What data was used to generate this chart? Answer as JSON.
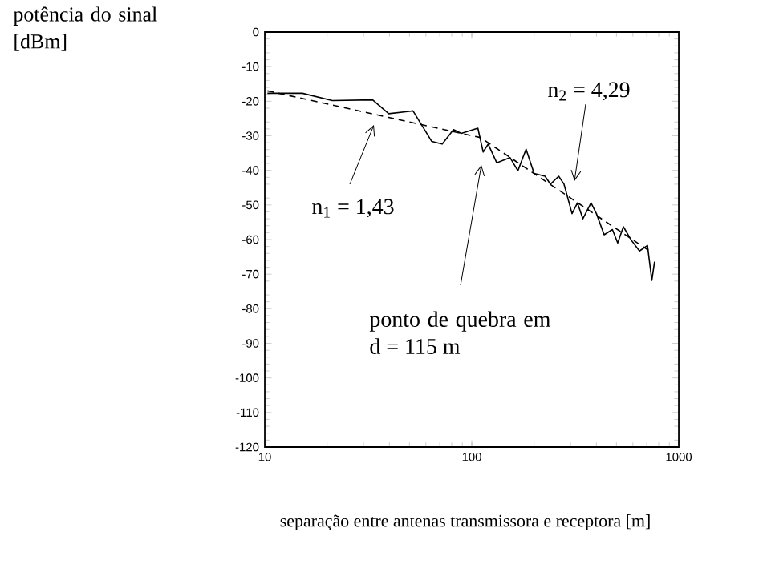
{
  "chart_data": {
    "type": "line",
    "xlabel": "separação entre antenas transmissora e receptora [m]",
    "ylabel": "potência do sinal [dBm]",
    "log": "x",
    "xlim": [
      10,
      1000
    ],
    "xticks": [
      10,
      100,
      1000
    ],
    "ylim": [
      -120,
      0
    ],
    "yticks": [
      -120,
      -110,
      -100,
      -90,
      -80,
      -70,
      -60,
      -50,
      -40,
      -30,
      -20,
      -10,
      0
    ],
    "marker": "none",
    "series": [
      {
        "color": "#000000",
        "line_style": "solid",
        "x": [
          10.3,
          15.2,
          21.2,
          33.2,
          39.7,
          52,
          64,
          72,
          81.6,
          89,
          107,
          113.5,
          120,
          132,
          153,
          167,
          183,
          200,
          226,
          240,
          263,
          279,
          305,
          324,
          344,
          377,
          400,
          436,
          478,
          507,
          540,
          590,
          646,
          706,
          741,
          764
        ],
        "values": [
          -17.7,
          -17.7,
          -19.8,
          -19.6,
          -23.6,
          -22.8,
          -31.6,
          -32.4,
          -28.2,
          -29.3,
          -27.8,
          -34.7,
          -32.4,
          -37.8,
          -36.3,
          -40.1,
          -33.9,
          -40.9,
          -41.7,
          -44,
          -41.7,
          -44,
          -52.5,
          -49.4,
          -54,
          -49.4,
          -52.5,
          -58.6,
          -57.1,
          -61,
          -56.3,
          -60.2,
          -63.3,
          -61.7,
          -71.8,
          -66.4
        ]
      },
      {
        "color": "#000000",
        "line_style": "dashed",
        "x": [
          10.3,
          110,
          730
        ],
        "values": [
          -17,
          -30.5,
          -63.5
        ]
      }
    ],
    "annotations": [
      "n$_{1}$ = 1,43",
      "n$_{2}$ = 4,29",
      "ponto de quebra em d = 115 m"
    ]
  }
}
